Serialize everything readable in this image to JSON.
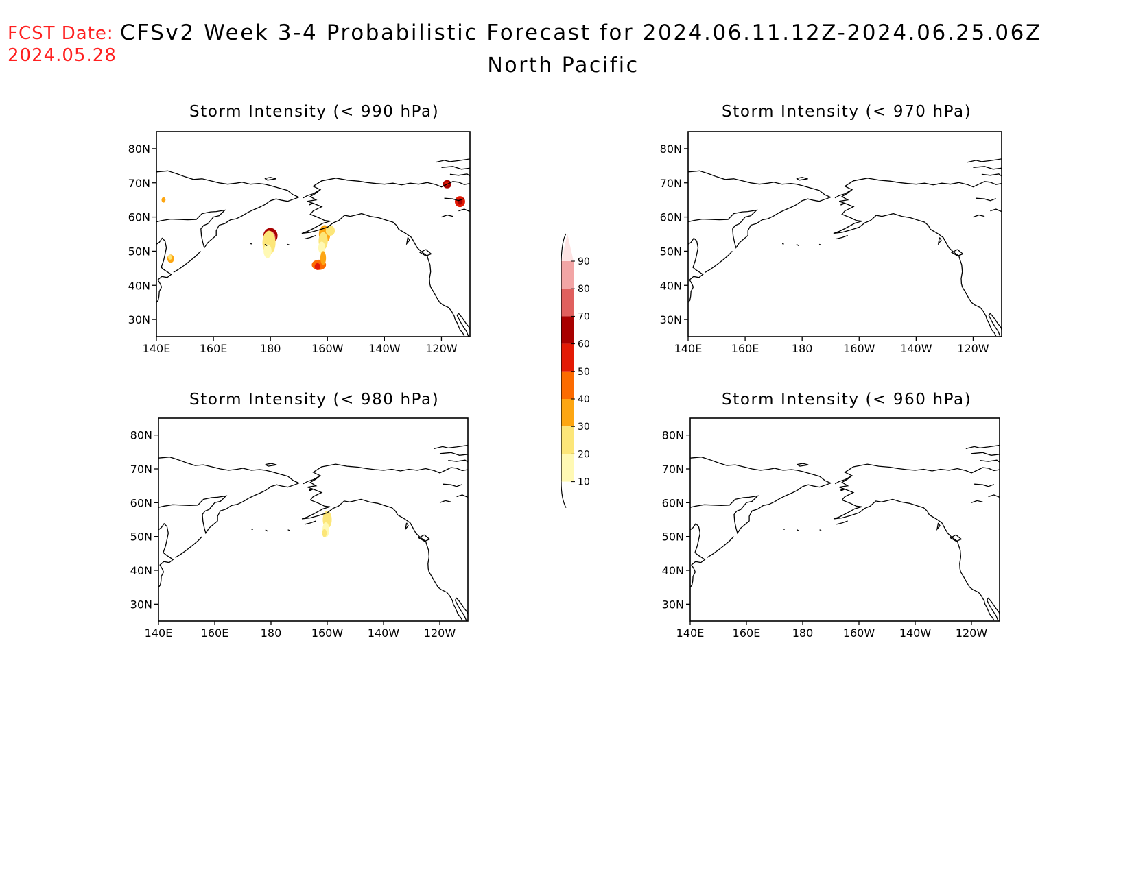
{
  "header": {
    "fcst_label": "FCST Date:",
    "fcst_date": "2024.05.28",
    "title": "CFSv2 Week 3-4 Probabilistic Forecast for 2024.06.11.12Z-2024.06.25.06Z",
    "region": "North Pacific"
  },
  "panels": [
    {
      "title": "Storm Intensity (< 990 hPa)"
    },
    {
      "title": "Storm Intensity (< 970 hPa)"
    },
    {
      "title": "Storm Intensity (< 980 hPa)"
    },
    {
      "title": "Storm Intensity (< 960 hPa)"
    }
  ],
  "axes": {
    "lon_ticks": [
      "140E",
      "160E",
      "180",
      "160W",
      "140W",
      "120W"
    ],
    "lat_ticks": [
      "80N",
      "70N",
      "60N",
      "50N",
      "40N",
      "30N"
    ]
  },
  "colorbar": {
    "labels": [
      "10",
      "20",
      "30",
      "40",
      "50",
      "60",
      "70",
      "80",
      "90"
    ],
    "colors": [
      "#fff9b4",
      "#fce679",
      "#fda612",
      "#fc6b00",
      "#e31a05",
      "#a80000",
      "#e0605e",
      "#f2a5a5",
      "#fde3e3"
    ]
  }
}
